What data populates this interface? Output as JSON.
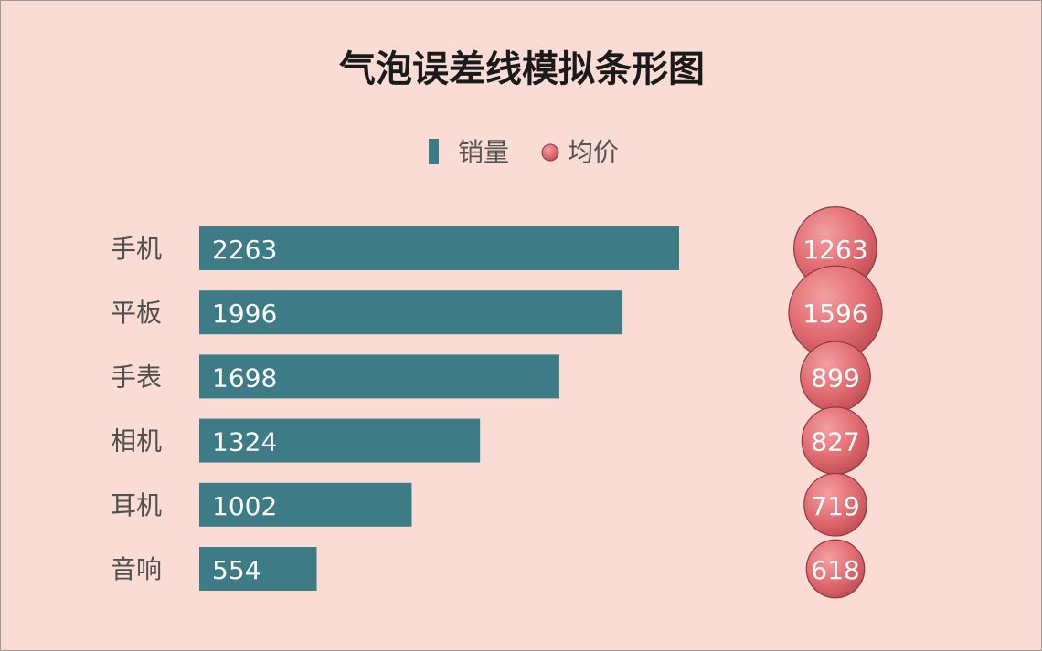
{
  "chart_data": {
    "type": "bar",
    "title": "气泡误差线模拟条形图",
    "legend": [
      {
        "label": "销量",
        "color": "#3d7b86",
        "marker": "bar"
      },
      {
        "label": "均价",
        "color": "#e06c70",
        "marker": "bubble"
      }
    ],
    "legend_position": "top",
    "categories": [
      "手机",
      "平板",
      "手表",
      "相机",
      "耳机",
      "音响"
    ],
    "series": [
      {
        "name": "销量",
        "values": [
          2263,
          1996,
          1698,
          1324,
          1002,
          554
        ],
        "color": "#3d7b86"
      },
      {
        "name": "均价",
        "values": [
          1263,
          1596,
          899,
          827,
          719,
          618
        ],
        "color": "#e06c70"
      }
    ],
    "grid": false
  }
}
